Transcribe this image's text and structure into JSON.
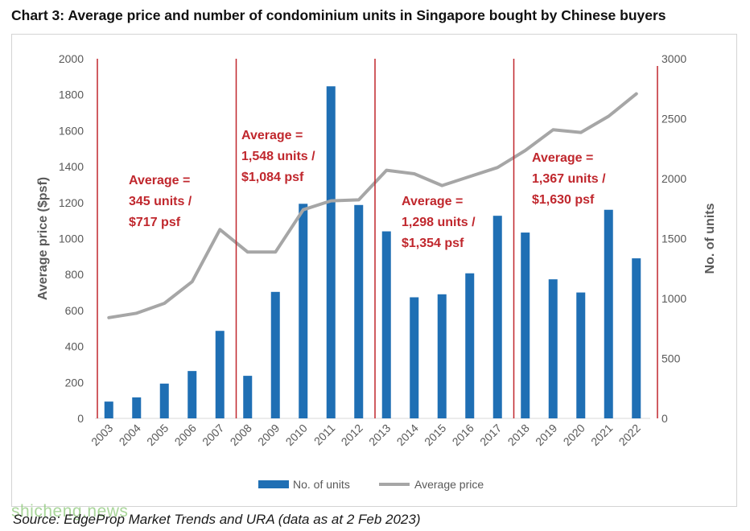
{
  "title": "Chart 3: Average price and number of condominium units in Singapore bought by Chinese buyers",
  "source": "Source: EdgeProp Market Trends and URA (data as at 2 Feb 2023)",
  "watermark": "shicheng.news",
  "chart_data": {
    "type": "bar",
    "categories": [
      "2003",
      "2004",
      "2005",
      "2006",
      "2007",
      "2008",
      "2009",
      "2010",
      "2011",
      "2012",
      "2013",
      "2014",
      "2015",
      "2016",
      "2017",
      "2018",
      "2019",
      "2020",
      "2021",
      "2022"
    ],
    "series": [
      {
        "name": "No. of units",
        "type": "bar",
        "axis": "right",
        "color": "#1f6fb4",
        "values": [
          140,
          175,
          290,
          395,
          730,
          355,
          1055,
          1790,
          2770,
          1780,
          1560,
          1010,
          1035,
          1210,
          1690,
          1550,
          1160,
          1050,
          1740,
          1335
        ]
      },
      {
        "name": "Average price",
        "type": "line",
        "axis": "left",
        "color": "#a6a6a6",
        "values": [
          560,
          585,
          640,
          760,
          1050,
          925,
          925,
          1160,
          1210,
          1215,
          1380,
          1360,
          1295,
          1345,
          1395,
          1490,
          1605,
          1590,
          1680,
          1805
        ]
      }
    ],
    "left_axis": {
      "label": "Average price ($psf)",
      "ylim": [
        0,
        2000
      ],
      "ticks": [
        "0",
        "200",
        "400",
        "600",
        "800",
        "1000",
        "1200",
        "1400",
        "1600",
        "1800",
        "2000"
      ]
    },
    "right_axis": {
      "label": "No. of units",
      "ylim": [
        0,
        3000
      ],
      "ticks": [
        "0",
        "500",
        "1000",
        "1500",
        "2000",
        "2500",
        "3000"
      ]
    },
    "xlabel": "",
    "grid": false,
    "legend": "bottom",
    "period_dividers_before": [
      "2003",
      "2008",
      "2013",
      "2018"
    ],
    "divider_color": "#c0272d",
    "annotations": [
      {
        "period": "2003-2007",
        "lines": [
          "Average =",
          "345 units /",
          "$717 psf"
        ]
      },
      {
        "period": "2008-2012",
        "lines": [
          "Average =",
          "1,548 units /",
          "$1,084 psf"
        ]
      },
      {
        "period": "2013-2017",
        "lines": [
          "Average =",
          "1,298 units /",
          "$1,354 psf"
        ]
      },
      {
        "period": "2018-2022",
        "lines": [
          "Average =",
          "1,367 units /",
          "$1,630 psf"
        ]
      }
    ]
  }
}
